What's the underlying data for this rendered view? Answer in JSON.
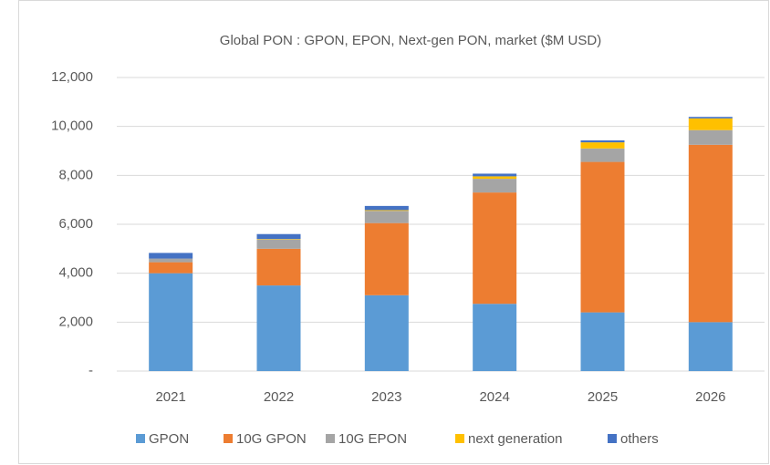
{
  "chart_data": {
    "type": "stacked_bar",
    "title": "Global PON : GPON, EPON, Next-gen PON, market ($M USD)",
    "categories": [
      "2021",
      "2022",
      "2023",
      "2024",
      "2025",
      "2026"
    ],
    "series": [
      {
        "name": "GPON",
        "color": "#5b9bd5",
        "values": [
          4000,
          3500,
          3100,
          2750,
          2400,
          2000
        ]
      },
      {
        "name": "10G GPON",
        "color": "#ed7d31",
        "values": [
          450,
          1500,
          2950,
          4550,
          6150,
          7250
        ]
      },
      {
        "name": "10G EPON",
        "color": "#a5a5a5",
        "values": [
          150,
          380,
          500,
          560,
          550,
          600
        ]
      },
      {
        "name": "next generation",
        "color": "#ffc000",
        "values": [
          0,
          20,
          30,
          100,
          250,
          480
        ]
      },
      {
        "name": "others",
        "color": "#4472c4",
        "values": [
          230,
          200,
          170,
          110,
          80,
          60
        ]
      }
    ],
    "ylim": [
      0,
      12000
    ],
    "yticks": [
      {
        "value": 0,
        "label": "-"
      },
      {
        "value": 2000,
        "label": "2,000"
      },
      {
        "value": 4000,
        "label": "4,000"
      },
      {
        "value": 6000,
        "label": "6,000"
      },
      {
        "value": 8000,
        "label": "8,000"
      },
      {
        "value": 10000,
        "label": "10,000"
      },
      {
        "value": 12000,
        "label": "12,000"
      }
    ],
    "grid": true,
    "legend": "bottom"
  }
}
